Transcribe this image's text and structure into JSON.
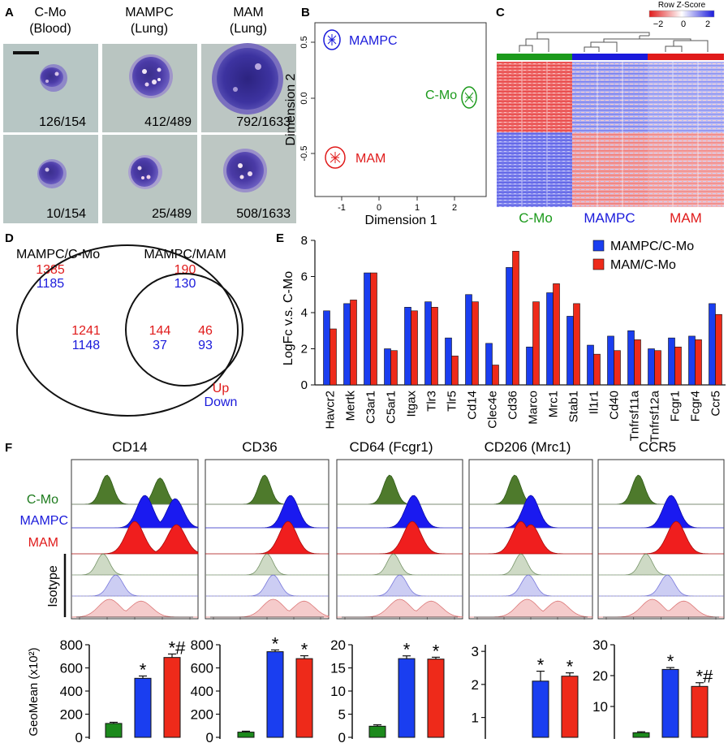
{
  "panels": {
    "A": {
      "letter": "A",
      "headers": [
        {
          "line1": "C-Mo",
          "line2": "(Blood)"
        },
        {
          "line1": "MAMPC",
          "line2": "(Lung)"
        },
        {
          "line1": "MAM",
          "line2": "(Lung)"
        }
      ],
      "counts_row1": [
        "126/154",
        "412/489",
        "792/1633"
      ],
      "counts_row2": [
        "10/154",
        "25/489",
        "508/1633"
      ]
    },
    "B": {
      "letter": "B",
      "xlabel": "Dimension 1",
      "ylabel": "Dimension 2",
      "xticks": [
        "-1",
        "0",
        "1",
        "2"
      ],
      "yticks": [
        "0.5",
        "0.0",
        "-0.5"
      ],
      "groups": [
        {
          "name": "MAMPC",
          "color": "#1a1adb"
        },
        {
          "name": "C-Mo",
          "color": "#1c9a1c"
        },
        {
          "name": "MAM",
          "color": "#e01b1b"
        }
      ]
    },
    "C": {
      "letter": "C",
      "legend_title": "Row Z-Score",
      "legend_ticks": [
        "−2",
        "0",
        "2"
      ],
      "groups": [
        {
          "name": "C-Mo",
          "color": "#1c9a1c"
        },
        {
          "name": "MAMPC",
          "color": "#1a1adb"
        },
        {
          "name": "MAM",
          "color": "#e01b1b"
        }
      ]
    },
    "D": {
      "letter": "D",
      "left_title": "MAMPC/C-Mo",
      "left_up": "1385",
      "left_down": "1185",
      "right_title": "MAMPC/MAM",
      "right_up": "190",
      "right_down": "130",
      "only_left_up": "1241",
      "only_left_down": "1148",
      "overlap_up": "144",
      "overlap_down": "37",
      "only_right_up": "46",
      "only_right_down": "93",
      "legend_up": "Up",
      "legend_down": "Down",
      "up_color": "#e01b1b",
      "down_color": "#1a1adb"
    },
    "F": {
      "letter": "F",
      "row_labels": {
        "cmo": "C-Mo",
        "mampc": "MAMPC",
        "mam": "MAM",
        "isotype": "Isotype"
      },
      "geomean_label": "GeoMean (x10²)"
    }
  },
  "chart_data": [
    {
      "id": "E",
      "letter": "E",
      "type": "bar",
      "title": "",
      "ylabel": "LogFc v.s. C-Mo",
      "xlabel": "",
      "ylim": [
        0,
        8
      ],
      "yticks": [
        "0",
        "2",
        "4",
        "6",
        "8"
      ],
      "legend_position": "top-right",
      "categories": [
        "Havcr2",
        "Mertk",
        "C3ar1",
        "C5ar1",
        "Itgax",
        "Tlr3",
        "Tlr5",
        "Cd14",
        "Clec4e",
        "Cd36",
        "Marco",
        "Mrc1",
        "Stab1",
        "Il1r1",
        "Cd40",
        "Tnfrsf11a",
        "Tnfrsf12a",
        "Fcgr1",
        "Fcgr4",
        "Ccr5"
      ],
      "series": [
        {
          "name": "MAMPC/C-Mo",
          "color": "#1a3ef0",
          "values": [
            4.1,
            4.5,
            6.2,
            2.0,
            4.3,
            4.6,
            2.6,
            5.0,
            2.3,
            6.5,
            2.1,
            5.1,
            3.8,
            2.2,
            2.7,
            3.0,
            2.0,
            2.6,
            2.7,
            4.5
          ]
        },
        {
          "name": "MAM/C-Mo",
          "color": "#ee2a1a",
          "values": [
            3.1,
            4.7,
            6.2,
            1.9,
            4.1,
            4.3,
            1.6,
            4.6,
            1.1,
            7.4,
            4.6,
            5.6,
            4.5,
            1.7,
            1.9,
            2.5,
            1.9,
            2.1,
            2.5,
            3.9
          ]
        }
      ]
    },
    {
      "id": "F-CD14",
      "type": "bar",
      "title": "CD14",
      "ylabel": "GeoMean (x10²)",
      "categories": [
        "C-Mo",
        "MAMPC",
        "MAM"
      ],
      "colors": [
        "#1c8a1c",
        "#1a3ef0",
        "#ee2a1a"
      ],
      "values": [
        120,
        510,
        690
      ],
      "errors": [
        10,
        20,
        30
      ],
      "annotations": [
        "",
        "*",
        "*#"
      ],
      "ylim": [
        0,
        800
      ],
      "yticks": [
        "0",
        "200",
        "400",
        "600",
        "800"
      ]
    },
    {
      "id": "F-CD36",
      "type": "bar",
      "title": "CD36",
      "ylabel": "",
      "categories": [
        "C-Mo",
        "MAMPC",
        "MAM"
      ],
      "colors": [
        "#1c8a1c",
        "#1a3ef0",
        "#ee2a1a"
      ],
      "values": [
        45,
        740,
        680
      ],
      "errors": [
        8,
        15,
        25
      ],
      "annotations": [
        "",
        "*",
        "*"
      ],
      "ylim": [
        0,
        800
      ],
      "yticks": [
        "0",
        "200",
        "400",
        "600",
        "800"
      ]
    },
    {
      "id": "F-CD64",
      "type": "bar",
      "title": "CD64 (Fcgr1)",
      "ylabel": "",
      "categories": [
        "C-Mo",
        "MAMPC",
        "MAM"
      ],
      "colors": [
        "#1c8a1c",
        "#1a3ef0",
        "#ee2a1a"
      ],
      "values": [
        2.4,
        17.0,
        16.9
      ],
      "errors": [
        0.3,
        0.6,
        0.4
      ],
      "annotations": [
        "",
        "*",
        "*"
      ],
      "ylim": [
        0,
        20
      ],
      "yticks": [
        "0",
        "5",
        "10",
        "15",
        "20"
      ]
    },
    {
      "id": "F-CD206",
      "type": "bar",
      "title": "CD206 (Mrc1)",
      "ylabel": "",
      "categories": [
        "C-Mo",
        "MAMPC",
        "MAM"
      ],
      "colors": [
        "#1c8a1c",
        "#1a3ef0",
        "#ee2a1a"
      ],
      "values": [
        0.05,
        2.1,
        2.25
      ],
      "errors": [
        0,
        0.3,
        0.1
      ],
      "annotations": [
        "",
        "*",
        "*"
      ],
      "ylim": [
        0.4,
        3.2
      ],
      "yticks": [
        "1",
        "2",
        "3"
      ]
    },
    {
      "id": "F-CCR5",
      "type": "bar",
      "title": "CCR5",
      "ylabel": "",
      "categories": [
        "C-Mo",
        "MAMPC",
        "MAM"
      ],
      "colors": [
        "#1c8a1c",
        "#1a3ef0",
        "#ee2a1a"
      ],
      "values": [
        1.5,
        22.0,
        16.5
      ],
      "errors": [
        0.3,
        0.6,
        1.2
      ],
      "annotations": [
        "",
        "*",
        "*#"
      ],
      "ylim": [
        0,
        30
      ],
      "yticks": [
        "10",
        "20",
        "30"
      ]
    }
  ]
}
